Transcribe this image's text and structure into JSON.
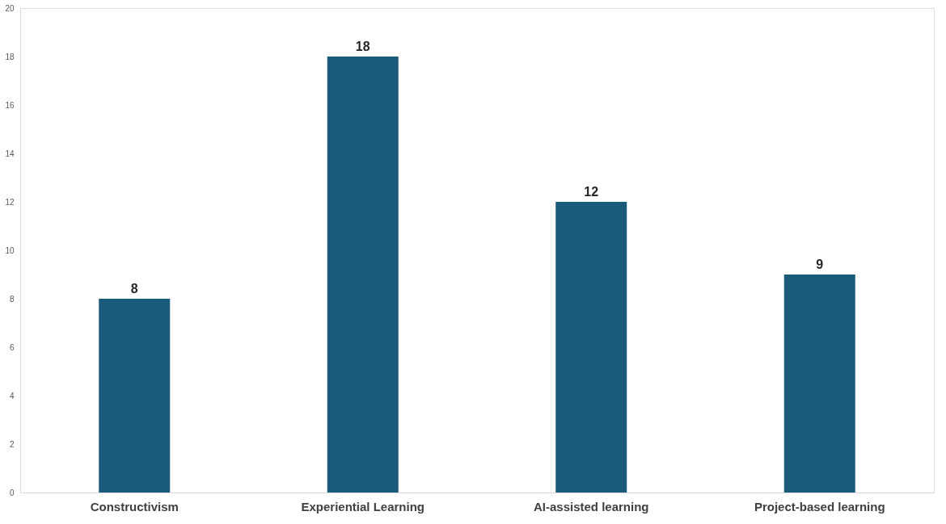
{
  "chart_data": {
    "type": "bar",
    "categories": [
      "Constructivism",
      "Experiential Learning",
      "AI-assisted learning",
      "Project-based learning"
    ],
    "values": [
      8,
      18,
      12,
      9
    ],
    "color": "#1a5b7c",
    "ylim": [
      0,
      20
    ],
    "yticks": [
      0,
      2,
      4,
      6,
      8,
      10,
      12,
      14,
      16,
      18,
      20
    ],
    "data_labels": true,
    "grid": false
  }
}
